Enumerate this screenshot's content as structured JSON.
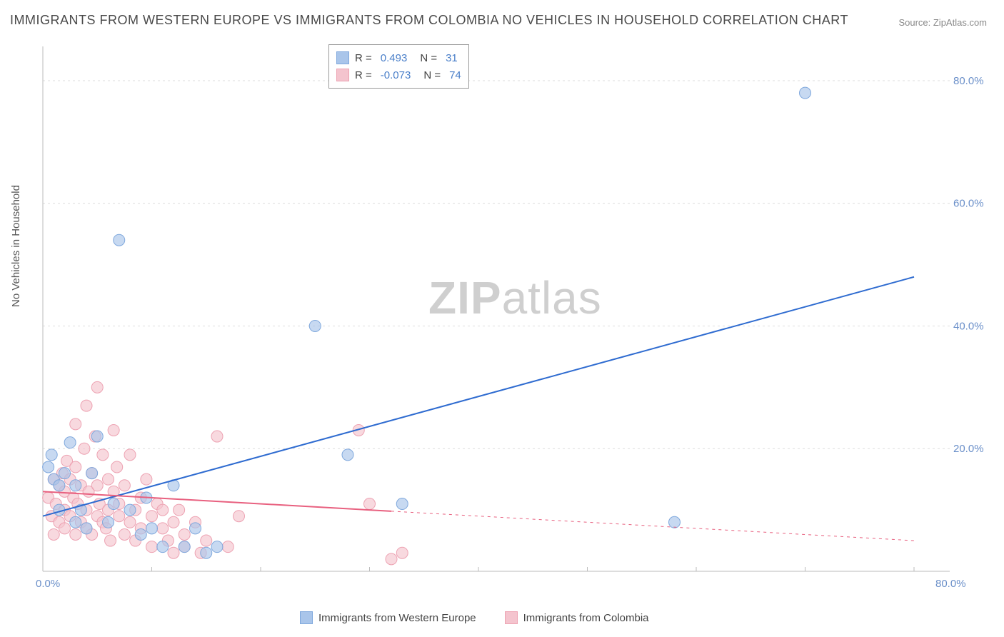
{
  "title": "IMMIGRANTS FROM WESTERN EUROPE VS IMMIGRANTS FROM COLOMBIA NO VEHICLES IN HOUSEHOLD CORRELATION CHART",
  "source": "Source: ZipAtlas.com",
  "watermark_a": "ZIP",
  "watermark_b": "atlas",
  "y_axis_label": "No Vehicles in Household",
  "chart": {
    "type": "scatter-with-regression",
    "background_color": "#ffffff",
    "grid_color": "#dddddd",
    "axis_color": "#bbbbbb",
    "xlim": [
      0,
      80
    ],
    "ylim": [
      0,
      85
    ],
    "x_ticks": [
      0,
      80
    ],
    "x_tick_labels": [
      "0.0%",
      "80.0%"
    ],
    "y_ticks": [
      20,
      40,
      60,
      80
    ],
    "y_tick_labels": [
      "20.0%",
      "40.0%",
      "60.0%",
      "80.0%"
    ],
    "tick_color": "#6a8fc9",
    "tick_fontsize": 15,
    "title_fontsize": 18,
    "title_color": "#4a4a4a",
    "series": [
      {
        "name": "Immigrants from Western Europe",
        "color_fill": "#a9c5ea",
        "color_stroke": "#7fa8dd",
        "line_color": "#2e6bd0",
        "line_width": 2,
        "marker_radius": 8,
        "marker_opacity": 0.65,
        "R": "0.493",
        "N": "31",
        "regression": {
          "x1": 0,
          "y1": 9,
          "x2": 80,
          "y2": 48,
          "solid_until_x": 80
        },
        "points": [
          [
            0.5,
            17
          ],
          [
            0.8,
            19
          ],
          [
            1,
            15
          ],
          [
            1.5,
            14
          ],
          [
            1.5,
            10
          ],
          [
            2,
            16
          ],
          [
            2.5,
            21
          ],
          [
            3,
            14
          ],
          [
            3,
            8
          ],
          [
            3.5,
            10
          ],
          [
            4,
            7
          ],
          [
            4.5,
            16
          ],
          [
            5,
            22
          ],
          [
            6,
            8
          ],
          [
            6.5,
            11
          ],
          [
            7,
            54
          ],
          [
            8,
            10
          ],
          [
            9,
            6
          ],
          [
            9.5,
            12
          ],
          [
            10,
            7
          ],
          [
            11,
            4
          ],
          [
            12,
            14
          ],
          [
            13,
            4
          ],
          [
            14,
            7
          ],
          [
            15,
            3
          ],
          [
            16,
            4
          ],
          [
            25,
            40
          ],
          [
            28,
            19
          ],
          [
            33,
            11
          ],
          [
            58,
            8
          ],
          [
            70,
            78
          ]
        ]
      },
      {
        "name": "Immigrants from Colombia",
        "color_fill": "#f4c4ce",
        "color_stroke": "#eda2b2",
        "line_color": "#e8607f",
        "line_width": 2,
        "marker_radius": 8,
        "marker_opacity": 0.65,
        "R": "-0.073",
        "N": "74",
        "regression": {
          "x1": 0,
          "y1": 13,
          "x2": 80,
          "y2": 5,
          "solid_until_x": 32
        },
        "points": [
          [
            0.5,
            12
          ],
          [
            0.8,
            9
          ],
          [
            1,
            15
          ],
          [
            1,
            6
          ],
          [
            1.2,
            11
          ],
          [
            1.5,
            8
          ],
          [
            1.5,
            14
          ],
          [
            1.8,
            16
          ],
          [
            2,
            10
          ],
          [
            2,
            7
          ],
          [
            2,
            13
          ],
          [
            2.2,
            18
          ],
          [
            2.5,
            9
          ],
          [
            2.5,
            15
          ],
          [
            2.8,
            12
          ],
          [
            3,
            6
          ],
          [
            3,
            17
          ],
          [
            3,
            24
          ],
          [
            3.2,
            11
          ],
          [
            3.5,
            8
          ],
          [
            3.5,
            14
          ],
          [
            3.8,
            20
          ],
          [
            4,
            10
          ],
          [
            4,
            7
          ],
          [
            4,
            27
          ],
          [
            4.2,
            13
          ],
          [
            4.5,
            16
          ],
          [
            4.5,
            6
          ],
          [
            4.8,
            22
          ],
          [
            5,
            9
          ],
          [
            5,
            14
          ],
          [
            5,
            30
          ],
          [
            5.2,
            11
          ],
          [
            5.5,
            8
          ],
          [
            5.5,
            19
          ],
          [
            5.8,
            7
          ],
          [
            6,
            15
          ],
          [
            6,
            10
          ],
          [
            6.2,
            5
          ],
          [
            6.5,
            13
          ],
          [
            6.5,
            23
          ],
          [
            6.8,
            17
          ],
          [
            7,
            9
          ],
          [
            7,
            11
          ],
          [
            7.5,
            6
          ],
          [
            7.5,
            14
          ],
          [
            8,
            8
          ],
          [
            8,
            19
          ],
          [
            8.5,
            10
          ],
          [
            8.5,
            5
          ],
          [
            9,
            12
          ],
          [
            9,
            7
          ],
          [
            9.5,
            15
          ],
          [
            10,
            9
          ],
          [
            10,
            4
          ],
          [
            10.5,
            11
          ],
          [
            11,
            7
          ],
          [
            11,
            10
          ],
          [
            11.5,
            5
          ],
          [
            12,
            8
          ],
          [
            12,
            3
          ],
          [
            12.5,
            10
          ],
          [
            13,
            6
          ],
          [
            13,
            4
          ],
          [
            14,
            8
          ],
          [
            14.5,
            3
          ],
          [
            15,
            5
          ],
          [
            16,
            22
          ],
          [
            17,
            4
          ],
          [
            18,
            9
          ],
          [
            29,
            23
          ],
          [
            30,
            11
          ],
          [
            32,
            2
          ],
          [
            33,
            3
          ]
        ]
      }
    ],
    "stats_box": {
      "border_color": "#999999",
      "fontsize": 15,
      "label_color": "#444444",
      "value_color": "#4a7fc9",
      "rows": [
        {
          "swatch_fill": "#a9c5ea",
          "swatch_stroke": "#7fa8dd",
          "R_label": "R =",
          "R": "0.493",
          "N_label": "N =",
          "N": "31"
        },
        {
          "swatch_fill": "#f4c4ce",
          "swatch_stroke": "#eda2b2",
          "R_label": "R =",
          "R": "-0.073",
          "N_label": "N =",
          "N": "74"
        }
      ]
    }
  }
}
